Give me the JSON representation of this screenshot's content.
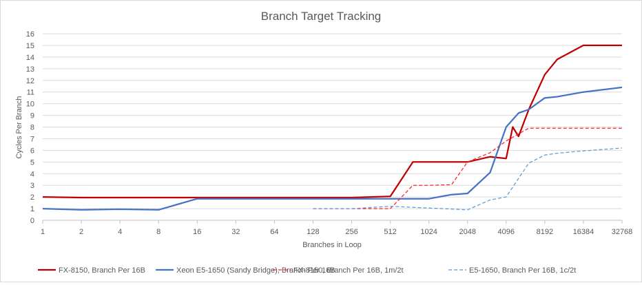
{
  "chart_data": {
    "type": "line",
    "title": "Branch Target Tracking",
    "xlabel": "Branches in Loop",
    "ylabel": "Cycles Per Branch",
    "x_scale": "log2",
    "x_ticks": [
      1,
      2,
      4,
      8,
      16,
      32,
      64,
      128,
      256,
      512,
      1024,
      2048,
      4096,
      8192,
      16384,
      32768
    ],
    "ylim": [
      0,
      16
    ],
    "y_ticks": [
      0,
      1,
      2,
      3,
      4,
      5,
      6,
      7,
      8,
      9,
      10,
      11,
      12,
      13,
      14,
      15,
      16
    ],
    "grid": "horizontal",
    "legend_position": "bottom",
    "series": [
      {
        "name": "FX-8150, Branch Per 16B",
        "color": "#c00000",
        "dash": "solid",
        "points": [
          [
            1,
            2.0
          ],
          [
            2,
            1.95
          ],
          [
            16,
            1.95
          ],
          [
            256,
            1.95
          ],
          [
            512,
            2.05
          ],
          [
            768,
            5.0
          ],
          [
            1536,
            5.0
          ],
          [
            2048,
            5.0
          ],
          [
            3072,
            5.45
          ],
          [
            4096,
            5.3
          ],
          [
            4608,
            8.0
          ],
          [
            5120,
            7.2
          ],
          [
            6144,
            9.5
          ],
          [
            8192,
            12.5
          ],
          [
            10240,
            13.8
          ],
          [
            16384,
            15.0
          ],
          [
            32768,
            15.0
          ]
        ]
      },
      {
        "name": "Xeon E5-1650 (Sandy Bridge), Branch Per 16B",
        "color": "#4472c4",
        "dash": "solid",
        "points": [
          [
            1,
            1.0
          ],
          [
            2,
            0.9
          ],
          [
            4,
            0.95
          ],
          [
            8,
            0.9
          ],
          [
            16,
            1.85
          ],
          [
            512,
            1.85
          ],
          [
            1024,
            1.85
          ],
          [
            1536,
            2.2
          ],
          [
            2048,
            2.3
          ],
          [
            3072,
            4.1
          ],
          [
            4096,
            8.0
          ],
          [
            5120,
            9.2
          ],
          [
            6144,
            9.5
          ],
          [
            8192,
            10.5
          ],
          [
            10240,
            10.6
          ],
          [
            16384,
            11.0
          ],
          [
            32768,
            11.4
          ]
        ]
      },
      {
        "name": "FX-8150, Branch Per 16B, 1m/2t",
        "color": "#ff2020",
        "dash": "dashed",
        "points": [
          [
            128,
            1.0
          ],
          [
            256,
            1.0
          ],
          [
            512,
            1.0
          ],
          [
            768,
            3.0
          ],
          [
            1024,
            3.0
          ],
          [
            1536,
            3.05
          ],
          [
            2048,
            5.0
          ],
          [
            3072,
            5.8
          ],
          [
            4096,
            6.8
          ],
          [
            6144,
            7.9
          ],
          [
            8192,
            7.9
          ],
          [
            16384,
            7.9
          ],
          [
            32768,
            7.9
          ]
        ]
      },
      {
        "name": "E5-1650, Branch Per 16B, 1c/2t",
        "color": "#5b9bd5",
        "dash": "dashed",
        "points": [
          [
            128,
            1.0
          ],
          [
            256,
            1.0
          ],
          [
            512,
            1.2
          ],
          [
            1024,
            1.05
          ],
          [
            2048,
            0.9
          ],
          [
            3072,
            1.75
          ],
          [
            4096,
            2.0
          ],
          [
            6144,
            4.9
          ],
          [
            8192,
            5.6
          ],
          [
            10240,
            5.75
          ],
          [
            16384,
            5.95
          ],
          [
            32768,
            6.2
          ]
        ]
      }
    ]
  }
}
